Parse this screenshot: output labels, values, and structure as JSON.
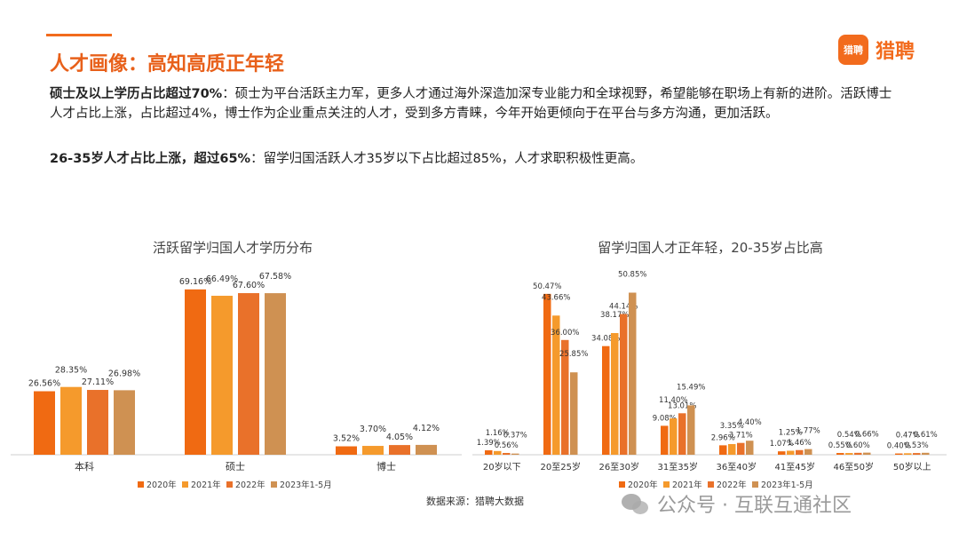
{
  "header": {
    "title": "人才画像：高知高质正年轻",
    "logo_badge": "猎聘",
    "logo_text": "猎聘"
  },
  "paragraphs": {
    "p1_bold": "硕士及以上学历占比超过70%",
    "p1_text": "：硕士为平台活跃主力军，更多人才通过海外深造加深专业能力和全球视野，希望能够在职场上有新的进阶。活跃博士人才占比上涨，占比超过4%，博士作为企业重点关注的人才，受到多方青睐，今年开始更倾向于在平台与多方沟通，更加活跃。",
    "p2_bold": "26-35岁人才占比上涨，超过65%",
    "p2_text": "：留学归国活跃人才35岁以下占比超过85%，人才求职积极性更高。"
  },
  "source": "数据来源：猎聘大数据",
  "watermark": "公众号 · 互联互通社区",
  "colors": {
    "accent": "#f26b1d",
    "series": [
      "#f06a12",
      "#f59a2c",
      "#e9712a",
      "#cf9152"
    ]
  },
  "chart_data": [
    {
      "type": "bar",
      "title": "活跃留学归国人才学历分布",
      "categories": [
        "本科",
        "硕士",
        "博士"
      ],
      "series": [
        {
          "name": "2020年",
          "values": [
            26.56,
            69.16,
            3.52
          ]
        },
        {
          "name": "2021年",
          "values": [
            28.35,
            66.49,
            3.7
          ]
        },
        {
          "name": "2022年",
          "values": [
            27.11,
            67.6,
            4.05
          ]
        },
        {
          "name": "2023年1-5月",
          "values": [
            26.98,
            67.58,
            4.12
          ]
        }
      ],
      "value_suffix": "%",
      "ylim": [
        0,
        80
      ],
      "grid": false,
      "legend": "bottom"
    },
    {
      "type": "bar",
      "title": "留学归国人才正年轻，20-35岁占比高",
      "categories": [
        "20岁以下",
        "20至25岁",
        "26至30岁",
        "31至35岁",
        "36至40岁",
        "41至45岁",
        "46至50岁",
        "50岁以上"
      ],
      "series": [
        {
          "name": "2020年",
          "values": [
            1.39,
            50.47,
            34.08,
            9.08,
            2.96,
            1.07,
            0.55,
            0.4
          ]
        },
        {
          "name": "2021年",
          "values": [
            1.16,
            43.66,
            38.17,
            11.4,
            3.35,
            1.25,
            0.54,
            0.47
          ]
        },
        {
          "name": "2022年",
          "values": [
            0.56,
            36.0,
            44.14,
            13.01,
            3.71,
            1.46,
            0.6,
            0.53
          ]
        },
        {
          "name": "2023年1-5月",
          "values": [
            0.37,
            25.85,
            50.85,
            15.49,
            4.4,
            1.77,
            0.66,
            0.61
          ]
        }
      ],
      "value_suffix": "%",
      "ylim": [
        0,
        60
      ],
      "grid": false,
      "legend": "bottom"
    }
  ]
}
